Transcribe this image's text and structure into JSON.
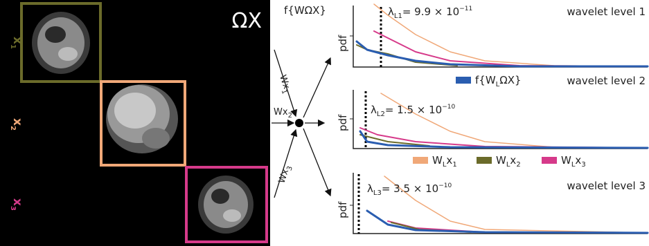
{
  "image": {
    "title": "ΩX",
    "row_labels": [
      [
        {
          "t": "x"
        },
        {
          "sub": "1"
        }
      ],
      [
        {
          "t": "x"
        },
        {
          "sub": "2"
        }
      ],
      [
        {
          "t": "x"
        },
        {
          "sub": "3"
        }
      ]
    ]
  },
  "diagram": {
    "input_label": "f{WΩX}",
    "transforms": [
      [
        {
          "t": "Wx"
        },
        {
          "sub": "1"
        }
      ],
      [
        {
          "t": "Wx"
        },
        {
          "sub": "2"
        }
      ],
      [
        {
          "t": "Wx"
        },
        {
          "sub": "3"
        }
      ]
    ]
  },
  "plots": [
    {
      "title": "wavelet level 1",
      "y_label": "pdf",
      "threshold": [
        {
          "t": "λ"
        },
        {
          "sub": "L1"
        },
        {
          "t": "= 9.9 × 10"
        },
        {
          "sup": "−11"
        }
      ]
    },
    {
      "title": "wavelet level 2",
      "y_label": "pdf",
      "threshold": [
        {
          "t": "λ"
        },
        {
          "sub": "L2"
        },
        {
          "t": "= 1.5 × 10"
        },
        {
          "sup": "−10"
        }
      ]
    },
    {
      "title": "wavelet level 3",
      "y_label": "pdf",
      "threshold": [
        {
          "t": "λ"
        },
        {
          "sub": "L3"
        },
        {
          "t": "= 3.5 × 10"
        },
        {
          "sup": "−10"
        }
      ]
    }
  ],
  "legend": [
    [
      {
        "t": "f{W"
      },
      {
        "sub": "L"
      },
      {
        "t": "ΩX}"
      }
    ],
    [
      {
        "t": "W"
      },
      {
        "sub": "L"
      },
      {
        "t": "x"
      },
      {
        "sub": "1"
      }
    ],
    [
      {
        "t": "W"
      },
      {
        "sub": "L"
      },
      {
        "t": "x"
      },
      {
        "sub": "2"
      }
    ],
    [
      {
        "t": "W"
      },
      {
        "sub": "L"
      },
      {
        "t": "x"
      },
      {
        "sub": "3"
      }
    ]
  ]
}
